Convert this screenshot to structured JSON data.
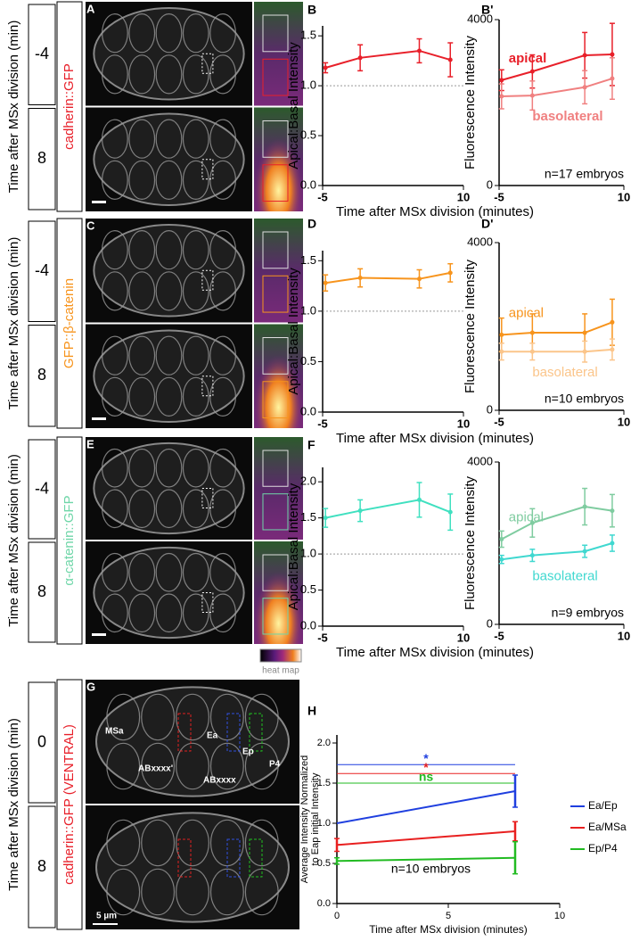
{
  "panels": [
    {
      "letter": "A",
      "time_label": "Time after MSx division (min)",
      "times": [
        "-4",
        "8"
      ],
      "marker": "cadherin::GFP",
      "color": "#e8202a"
    },
    {
      "letter": "C",
      "time_label": "Time after MSx division (min)",
      "times": [
        "-4",
        "8"
      ],
      "marker": "GFP::β-catenin",
      "color": "#f7941d"
    },
    {
      "letter": "E",
      "time_label": "Time after MSx division (min)",
      "times": [
        "-4",
        "8"
      ],
      "marker": "α-catenin::GFP",
      "color": "#6fd6a8"
    },
    {
      "letter": "G",
      "time_label": "Time after MSx division (min)",
      "times": [
        "0",
        "8"
      ],
      "marker": "cadherin::GFP (VENTRAL)",
      "color": "#e8202a",
      "labels": [
        "MSa",
        "Ea",
        "Ep",
        "P4",
        "ABxxxx'",
        "ABxxxx",
        "5 µm"
      ]
    }
  ],
  "heat_map_label": "heat map",
  "chart_data": [
    {
      "panel": "B",
      "type": "line",
      "x": [
        -4.7,
        -1,
        5.3,
        8.6
      ],
      "xlim": [
        -5,
        10
      ],
      "xticks": [
        -5,
        10
      ],
      "ylim": [
        0,
        1.6
      ],
      "yticks": [
        {
          "value": 0,
          "label": "0.0"
        },
        0.5,
        {
          "value": 1,
          "label": "1.0"
        },
        1.5
      ],
      "ylabel": "Apical:Basal Intensity",
      "xlabel": "Time after MSx division (minutes)",
      "refline": 1,
      "series": [
        {
          "color": "#e8202a",
          "values": [
            1.18,
            1.28,
            1.35,
            1.26
          ],
          "errors": [
            0.05,
            0.13,
            0.12,
            0.17
          ]
        }
      ]
    },
    {
      "panel": "B'",
      "type": "line",
      "x": [
        -4.7,
        -1,
        5.3,
        8.6
      ],
      "xlim": [
        -5,
        10
      ],
      "xticks": [
        -5,
        10
      ],
      "ylim": [
        0,
        4000
      ],
      "yticks": [
        0,
        4000
      ],
      "ylabel": "Fluorescence Intensity",
      "note": "n=17 embryos",
      "series_labels": "inline",
      "series": [
        {
          "name": "apical",
          "color": "#e8202a",
          "values": [
            2540,
            2750,
            3140,
            3160
          ],
          "errors": [
            250,
            400,
            550,
            750
          ]
        },
        {
          "name": "basolateral",
          "color": "#f08080",
          "values": [
            2150,
            2170,
            2370,
            2580
          ],
          "errors": [
            300,
            350,
            400,
            500
          ]
        }
      ]
    },
    {
      "panel": "D",
      "type": "line",
      "x": [
        -4.7,
        -1,
        5.3,
        8.6
      ],
      "xlim": [
        -5,
        10
      ],
      "xticks": [
        -5,
        10
      ],
      "ylim": [
        0,
        1.6
      ],
      "yticks": [
        {
          "value": 0,
          "label": "0.0"
        },
        0.5,
        {
          "value": 1,
          "label": "1.0"
        },
        1.5
      ],
      "ylabel": "Apical:Basal Intensity",
      "xlabel": "Time after MSx division (minutes)",
      "refline": 1,
      "series": [
        {
          "color": "#f7941d",
          "values": [
            1.28,
            1.33,
            1.32,
            1.38
          ],
          "errors": [
            0.08,
            0.09,
            0.09,
            0.09
          ]
        }
      ]
    },
    {
      "panel": "D'",
      "type": "line",
      "x": [
        -4.7,
        -1,
        5.3,
        8.6
      ],
      "xlim": [
        -5,
        10
      ],
      "xticks": [
        -5,
        10
      ],
      "ylim": [
        0,
        4000
      ],
      "yticks": [
        0,
        4000
      ],
      "ylabel": "Fluorescence Intensity",
      "note": "n=10 embryos",
      "series_labels": "inline",
      "series": [
        {
          "name": "apical",
          "color": "#f7941d",
          "values": [
            1800,
            1850,
            1850,
            2100
          ],
          "errors": [
            400,
            450,
            450,
            550
          ]
        },
        {
          "name": "basolateral",
          "color": "#fbc58a",
          "values": [
            1400,
            1400,
            1400,
            1450
          ],
          "errors": [
            200,
            200,
            250,
            250
          ]
        }
      ]
    },
    {
      "panel": "F",
      "type": "line",
      "x": [
        -4.7,
        -1,
        5.3,
        8.6
      ],
      "xlim": [
        -5,
        10
      ],
      "xticks": [
        -5,
        10
      ],
      "ylim": [
        0,
        2.2
      ],
      "yticks": [
        {
          "value": 0,
          "label": "0.0"
        },
        0.5,
        {
          "value": 1,
          "label": "1.0"
        },
        1.5,
        {
          "value": 2,
          "label": "2.0"
        }
      ],
      "ylabel": "Apical:Basal Intensity",
      "xlabel": "Time after MSx division (minutes)",
      "refline": 1,
      "series": [
        {
          "color": "#40e0c0",
          "values": [
            1.5,
            1.6,
            1.75,
            1.58
          ],
          "errors": [
            0.13,
            0.15,
            0.24,
            0.25
          ]
        }
      ]
    },
    {
      "panel": "F'",
      "type": "line",
      "x": [
        -4.7,
        -1,
        5.3,
        8.6
      ],
      "xlim": [
        -5,
        10
      ],
      "xticks": [
        -5,
        10
      ],
      "ylim": [
        0,
        4000
      ],
      "yticks": [
        0,
        4000
      ],
      "ylabel": "Fluorescence Intensity",
      "note": "n=9 embryos",
      "series_labels": "inline",
      "series": [
        {
          "name": "apical",
          "color": "#7fcca0",
          "values": [
            2100,
            2500,
            2900,
            2800
          ],
          "errors": [
            200,
            350,
            450,
            400
          ]
        },
        {
          "name": "basolateral",
          "color": "#40d8d0",
          "values": [
            1600,
            1700,
            1800,
            2000
          ],
          "errors": [
            100,
            150,
            150,
            200
          ]
        }
      ]
    },
    {
      "panel": "H",
      "type": "line",
      "x": [
        0,
        8
      ],
      "xlim": [
        0,
        10
      ],
      "xticks": [
        0,
        5,
        10
      ],
      "ylim": [
        0,
        2.1
      ],
      "yticks": [
        {
          "value": 0,
          "label": "0.0"
        },
        0.5,
        {
          "value": 1,
          "label": "1.0"
        },
        1.5,
        {
          "value": 2,
          "label": "2.0"
        }
      ],
      "ylabel": [
        "Average Intensity Normalized",
        "to Eap initial Intensity"
      ],
      "xlabel": "Time after MSx division (minutes)",
      "note": "n=10 embryos",
      "legend": "right",
      "brackets": [
        {
          "y": 1.73,
          "x": [
            0,
            8
          ],
          "label": "*",
          "color": "#1f3fdf"
        },
        {
          "y": 1.62,
          "x": [
            0,
            8
          ],
          "label": "*",
          "color": "#e82020"
        },
        {
          "y": 1.5,
          "x": [
            0,
            8
          ],
          "label": "ns",
          "color": "#22bb22"
        }
      ],
      "series": [
        {
          "name": "Ea/Ep",
          "color": "#1f3fdf",
          "values": [
            1.0,
            1.4
          ],
          "errors": [
            null,
            0.2
          ]
        },
        {
          "name": "Ea/MSa",
          "color": "#e82020",
          "values": [
            0.73,
            0.9
          ],
          "errors": [
            0.08,
            0.12
          ]
        },
        {
          "name": "Ep/P4",
          "color": "#22bb22",
          "values": [
            0.53,
            0.57
          ],
          "errors": [
            0.04,
            0.2
          ]
        }
      ]
    }
  ]
}
